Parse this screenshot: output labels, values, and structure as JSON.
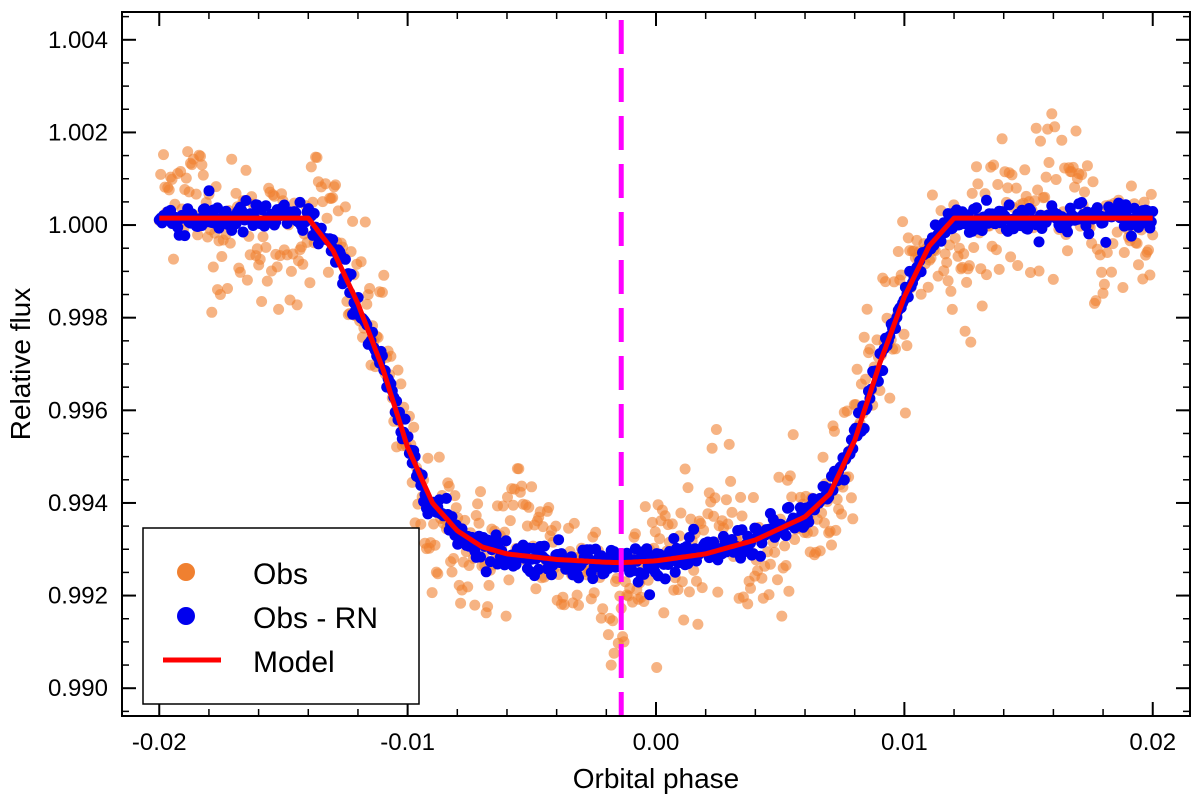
{
  "chart_data": {
    "type": "scatter",
    "title": "",
    "xlabel": "Orbital phase",
    "ylabel": "Relative flux",
    "xlim": [
      -0.0215,
      0.0215
    ],
    "ylim": [
      0.9894,
      1.0046
    ],
    "x_ticks": [
      -0.02,
      -0.01,
      0.0,
      0.01,
      0.02
    ],
    "x_tick_labels": [
      "-0.02",
      "-0.01",
      "0.00",
      "0.01",
      "0.02"
    ],
    "y_ticks": [
      0.99,
      0.992,
      0.994,
      0.996,
      0.998,
      1.0,
      1.002,
      1.004
    ],
    "y_tick_labels": [
      "0.990",
      "0.992",
      "0.994",
      "0.996",
      "0.998",
      "1.000",
      "1.002",
      "1.004"
    ],
    "grid": false,
    "legend_position": "bottom-left",
    "mid_transit_line": {
      "x": -0.0014,
      "color": "#ff00ff",
      "style": "dashed"
    },
    "series": [
      {
        "name": "Obs",
        "kind": "scatter",
        "color": "#f08030",
        "phase_range": [
          -0.02,
          0.02
        ],
        "n_points": 700,
        "scatter_sigma": 0.00075
      },
      {
        "name": "Obs - RN",
        "kind": "scatter",
        "color": "#0000ee",
        "phase_range": [
          -0.02,
          0.02
        ],
        "n_points": 700,
        "scatter_sigma": 0.00018
      },
      {
        "name": "Model",
        "kind": "line",
        "color": "#ff0000",
        "x": [
          -0.02,
          -0.014,
          -0.013,
          -0.012,
          -0.011,
          -0.01,
          -0.009,
          -0.008,
          -0.007,
          -0.006,
          -0.004,
          -0.002,
          -0.0014,
          0.0,
          0.002,
          0.004,
          0.006,
          0.007,
          0.008,
          0.009,
          0.01,
          0.011,
          0.012,
          0.014,
          0.02
        ],
        "y": [
          1.00015,
          1.00015,
          0.99945,
          0.9983,
          0.9969,
          0.9952,
          0.994,
          0.9934,
          0.99305,
          0.9929,
          0.99278,
          0.99272,
          0.99271,
          0.99275,
          0.9929,
          0.9932,
          0.9937,
          0.9942,
          0.99535,
          0.997,
          0.99845,
          0.99955,
          1.00015,
          1.00015,
          1.00015
        ]
      }
    ]
  }
}
